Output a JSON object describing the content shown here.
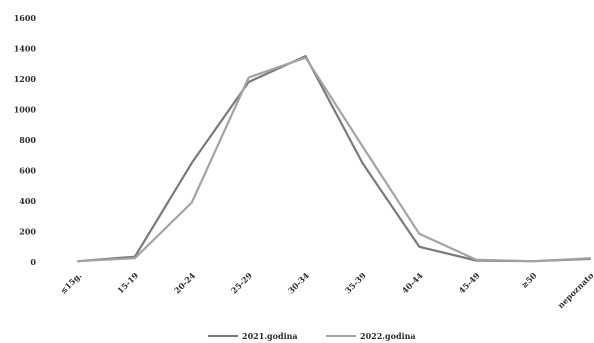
{
  "chart_data": {
    "type": "line",
    "title": "",
    "xlabel": "",
    "ylabel": "",
    "categories": [
      "≤15g.",
      "15-19",
      "20-24",
      "25-29",
      "30-34",
      "35-39",
      "40-44",
      "45-49",
      "≥50",
      "nepoznato"
    ],
    "yticks": [
      "0",
      "200",
      "400",
      "600",
      "800",
      "1000",
      "1200",
      "1400",
      "1600"
    ],
    "ylim": [
      0,
      1600
    ],
    "grid": false,
    "legend_position": "bottom-center",
    "series": [
      {
        "name": "2021.godina",
        "color": "#7a7a7a",
        "values": [
          5,
          35,
          650,
          1180,
          1350,
          650,
          100,
          10,
          5,
          20
        ]
      },
      {
        "name": "2022.godina",
        "color": "#a3a3a3",
        "values": [
          5,
          25,
          390,
          1210,
          1340,
          760,
          185,
          15,
          5,
          25
        ]
      }
    ]
  }
}
